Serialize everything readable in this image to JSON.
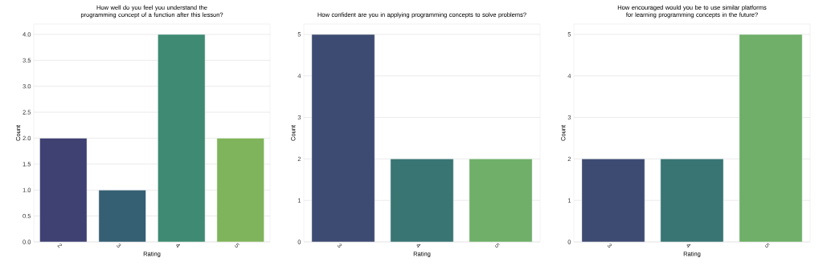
{
  "chart_data": [
    {
      "type": "bar",
      "title": "How well do you feel you understand the programming concept of a function after this lesson?",
      "xlabel": "Rating",
      "ylabel": "Count",
      "categories": [
        "2",
        "3",
        "4",
        "5"
      ],
      "values": [
        2,
        1,
        4,
        2
      ],
      "colors": [
        "#3f4173",
        "#355f73",
        "#3e8a72",
        "#80b45c"
      ],
      "ylim": [
        0,
        4.2
      ],
      "yticks": [
        {
          "value": 0,
          "label": "0.0"
        },
        {
          "value": 0.5,
          "label": "0.5"
        },
        {
          "value": 1,
          "label": "1.0"
        },
        {
          "value": 1.5,
          "label": "1.5"
        },
        {
          "value": 2,
          "label": "2.0"
        },
        {
          "value": 2.5,
          "label": "2.5"
        },
        {
          "value": 3,
          "label": "3.0"
        },
        {
          "value": 3.5,
          "label": "3.5"
        },
        {
          "value": 4,
          "label": "4.0"
        }
      ],
      "grid": "y"
    },
    {
      "type": "bar",
      "title": "How confident are you in applying programming concepts to solve problems?",
      "xlabel": "Rating",
      "ylabel": "Count",
      "categories": [
        "3",
        "4",
        "5"
      ],
      "values": [
        5,
        2,
        2
      ],
      "colors": [
        "#3d4b72",
        "#387573",
        "#6faf69"
      ],
      "ylim": [
        0,
        5.25
      ],
      "yticks": [
        0,
        1,
        2,
        3,
        4,
        5
      ],
      "grid": "y"
    },
    {
      "type": "bar",
      "title": "How encouraged would you be to use similar platforms for learning programming concepts in the future?",
      "xlabel": "Rating",
      "ylabel": "Count",
      "categories": [
        "3",
        "4",
        "5"
      ],
      "values": [
        2,
        2,
        5
      ],
      "colors": [
        "#3d4b72",
        "#387573",
        "#6faf69"
      ],
      "ylim": [
        0,
        5.25
      ],
      "yticks": [
        0,
        1,
        2,
        3,
        4,
        5
      ],
      "grid": "y"
    }
  ]
}
